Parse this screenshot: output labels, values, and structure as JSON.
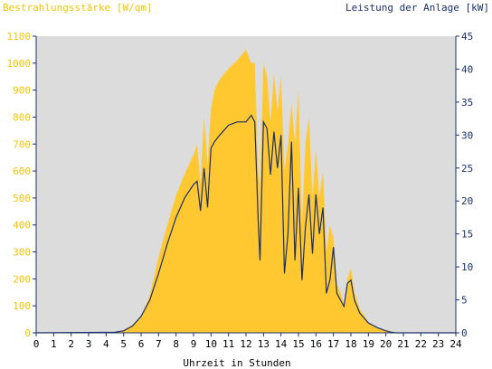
{
  "chart_data": {
    "type": "area",
    "ylabel_left": "Bestrahlungsstärke [W/qm]",
    "ylabel_right": "Leistung der Anlage [kW]",
    "xlabel": "Uhrzeit in Stunden",
    "xlim": [
      0,
      24
    ],
    "ylim_left": [
      0,
      1100
    ],
    "ylim_right": [
      0,
      45
    ],
    "x_ticks": [
      "0",
      "1",
      "2",
      "3",
      "4",
      "5",
      "6",
      "7",
      "8",
      "9",
      "10",
      "11",
      "12",
      "13",
      "14",
      "15",
      "16",
      "17",
      "18",
      "19",
      "20",
      "21",
      "22",
      "23",
      "24"
    ],
    "y_ticks_left": [
      "0",
      "100",
      "200",
      "300",
      "400",
      "500",
      "600",
      "700",
      "800",
      "900",
      "1000",
      "1100"
    ],
    "y_ticks_right": [
      "0",
      "5",
      "10",
      "15",
      "20",
      "25",
      "30",
      "35",
      "40",
      "45"
    ],
    "grid": false,
    "colors": {
      "irradiance": "#ffc830",
      "power": "#1a2f6e",
      "plot_bg": "#dcdcdc",
      "left_axis_text": "#f5c400",
      "right_axis_text": "#1a2f6e"
    },
    "series": [
      {
        "name": "Bestrahlungsstärke",
        "axis": "left",
        "x": [
          0,
          4.5,
          5,
          5.5,
          6,
          6.5,
          7,
          7.5,
          8,
          8.5,
          9,
          9.2,
          9.4,
          9.6,
          9.8,
          10,
          10.2,
          10.5,
          11,
          11.5,
          12,
          12.3,
          12.5,
          12.7,
          12.8,
          13,
          13.2,
          13.4,
          13.6,
          13.8,
          14,
          14.2,
          14.4,
          14.6,
          14.8,
          15,
          15.2,
          15.4,
          15.6,
          15.8,
          16,
          16.2,
          16.4,
          16.6,
          16.8,
          17,
          17.2,
          17.4,
          17.6,
          17.8,
          18,
          18.2,
          18.5,
          19,
          19.5,
          20,
          20.3,
          20.6,
          24
        ],
        "values": [
          0,
          2,
          10,
          30,
          60,
          140,
          280,
          400,
          510,
          590,
          660,
          700,
          550,
          800,
          620,
          830,
          900,
          940,
          980,
          1010,
          1050,
          1000,
          1000,
          600,
          550,
          1000,
          950,
          780,
          960,
          820,
          950,
          600,
          700,
          850,
          700,
          900,
          400,
          700,
          800,
          500,
          680,
          500,
          600,
          300,
          400,
          350,
          180,
          150,
          100,
          200,
          240,
          150,
          90,
          40,
          20,
          10,
          5,
          0,
          0
        ]
      },
      {
        "name": "Leistung",
        "axis": "right",
        "x": [
          0,
          4.5,
          5,
          5.5,
          6,
          6.5,
          7,
          7.5,
          8,
          8.5,
          9,
          9.2,
          9.4,
          9.6,
          9.8,
          10,
          10.2,
          10.5,
          11,
          11.5,
          12,
          12.3,
          12.5,
          12.7,
          12.8,
          13,
          13.2,
          13.4,
          13.6,
          13.8,
          14,
          14.2,
          14.4,
          14.6,
          14.8,
          15,
          15.2,
          15.4,
          15.6,
          15.8,
          16,
          16.2,
          16.4,
          16.6,
          16.8,
          17,
          17.2,
          17.4,
          17.6,
          17.8,
          18,
          18.2,
          18.5,
          19,
          19.5,
          20,
          20.3,
          20.6,
          24
        ],
        "values": [
          0,
          0.1,
          0.3,
          1,
          2.5,
          5,
          9,
          13.5,
          17.5,
          20.5,
          22.5,
          23,
          18.5,
          25,
          19,
          28,
          29,
          30,
          31.5,
          32,
          32,
          33,
          32,
          17,
          11,
          32,
          31,
          24,
          30.5,
          25,
          30,
          9,
          15,
          29,
          11,
          22,
          8,
          16,
          21,
          12,
          21,
          15,
          19,
          6,
          8,
          13,
          6,
          5,
          4,
          7.5,
          8,
          5,
          3,
          1.5,
          0.8,
          0.3,
          0.1,
          0,
          0
        ]
      }
    ]
  }
}
